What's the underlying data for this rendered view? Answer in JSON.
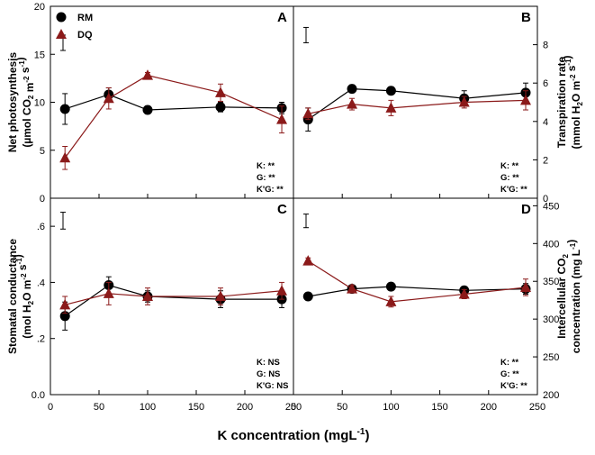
{
  "chart_data": {
    "type": "line",
    "legend": [
      {
        "name": "RM",
        "marker": "circle",
        "color": "#000000"
      },
      {
        "name": "DQ",
        "marker": "triangle",
        "color": "#8b1a1a"
      }
    ],
    "x_axis": {
      "label": "K concentration (mgL",
      "label_sup": "-1",
      "label_end": ")",
      "range": [
        0,
        250
      ],
      "ticks": [
        0,
        50,
        100,
        150,
        200,
        250
      ],
      "tick_labels": [
        "0",
        "50",
        "100",
        "150",
        "200",
        "250"
      ]
    },
    "x_values": [
      15,
      60,
      100,
      175,
      238
    ],
    "panels": [
      {
        "letter": "A",
        "y_side": "left",
        "ylabel_line1": "Net photosynthesis",
        "ylabel_line2": "(µmol CO2 m-2 s-1)",
        "ylim": [
          0,
          20
        ],
        "yticks": [
          0,
          5,
          10,
          15,
          20
        ],
        "ytick_labels": [
          "0",
          "5",
          "10",
          "15",
          "20"
        ],
        "error_scale_bar": {
          "center": 16.2,
          "half": 0.8
        },
        "series": [
          {
            "name": "RM",
            "values": [
              9.3,
              10.8,
              9.2,
              9.5,
              9.4
            ],
            "errors": [
              1.6,
              0.7,
              0.4,
              0.5,
              0.6
            ]
          },
          {
            "name": "DQ",
            "values": [
              4.2,
              10.4,
              12.8,
              11.0,
              8.2
            ],
            "errors": [
              1.2,
              1.1,
              0.3,
              0.9,
              1.4
            ]
          }
        ],
        "stats": [
          "K: **",
          "G: **",
          "K'G: **"
        ]
      },
      {
        "letter": "B",
        "y_side": "right",
        "ylabel_line1": "Transpiration rate",
        "ylabel_line2": "(mmol H2O m-2 s-1)",
        "ylim": [
          0,
          10
        ],
        "yticks": [
          0,
          2,
          4,
          6,
          8
        ],
        "ytick_labels": [
          "0",
          "2",
          "4",
          "6",
          "8"
        ],
        "error_scale_bar": {
          "center": 8.5,
          "half": 0.4
        },
        "series": [
          {
            "name": "RM",
            "values": [
              4.1,
              5.7,
              5.6,
              5.2,
              5.5
            ],
            "errors": [
              0.6,
              0.2,
              0.2,
              0.4,
              0.5
            ]
          },
          {
            "name": "DQ",
            "values": [
              4.4,
              4.9,
              4.7,
              5.0,
              5.1
            ],
            "errors": [
              0.3,
              0.3,
              0.4,
              0.3,
              0.5
            ]
          }
        ],
        "stats": [
          "K: **",
          "G: **",
          "K'G: **"
        ]
      },
      {
        "letter": "C",
        "y_side": "left",
        "ylabel_line1": "Stomatal conductance",
        "ylabel_line2": "(mol H2O m-2 s-1)",
        "ylim": [
          0,
          0.7
        ],
        "yticks": [
          0,
          0.2,
          0.4,
          0.6
        ],
        "ytick_labels": [
          "0.0",
          ".2",
          ".4",
          ".6"
        ],
        "error_scale_bar": {
          "center": 0.62,
          "half": 0.03
        },
        "series": [
          {
            "name": "RM",
            "values": [
              0.28,
              0.39,
              0.35,
              0.34,
              0.34
            ],
            "errors": [
              0.05,
              0.03,
              0.02,
              0.03,
              0.03
            ]
          },
          {
            "name": "DQ",
            "values": [
              0.32,
              0.36,
              0.35,
              0.35,
              0.37
            ],
            "errors": [
              0.03,
              0.04,
              0.03,
              0.03,
              0.03
            ]
          }
        ],
        "stats": [
          "K: NS",
          "G: NS",
          "K'G: NS"
        ]
      },
      {
        "letter": "D",
        "y_side": "right",
        "ylabel_line1": "Intercellular CO2",
        "ylabel_line2": "concentration (mg L-1)",
        "ylim": [
          200,
          460
        ],
        "yticks": [
          200,
          250,
          300,
          350,
          400,
          450
        ],
        "ytick_labels": [
          "200",
          "250",
          "300",
          "350",
          "400",
          "450"
        ],
        "error_scale_bar": {
          "center": 430,
          "half": 9
        },
        "series": [
          {
            "name": "RM",
            "values": [
              330,
              340,
              343,
              338,
              340
            ],
            "errors": [
              4,
              4,
              4,
              4,
              7
            ]
          },
          {
            "name": "DQ",
            "values": [
              377,
              340,
              323,
              333,
              342
            ],
            "errors": [
              4,
              5,
              7,
              6,
              11
            ]
          }
        ],
        "stats": [
          "K: **",
          "G: **",
          "K'G: **"
        ]
      }
    ]
  }
}
